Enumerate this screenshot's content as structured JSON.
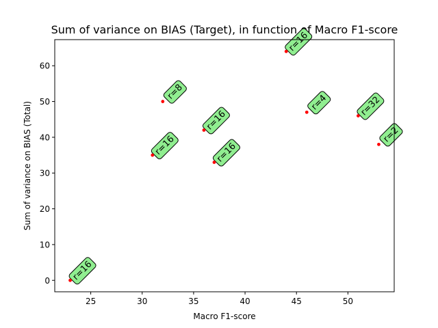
{
  "chart_data": {
    "type": "scatter",
    "title": "Sum of variance on BIAS (Target), in function of Macro F1-score",
    "xlabel": "Macro F1-score",
    "ylabel": "Sum of variance on BIAS (Total)",
    "xlim": [
      21.5,
      54.5
    ],
    "ylim": [
      -3.2,
      67.3
    ],
    "xticks": [
      25,
      30,
      35,
      40,
      45,
      50
    ],
    "yticks": [
      0,
      10,
      20,
      30,
      40,
      50,
      60
    ],
    "grid": false,
    "point_color": "#ff0000",
    "annotation_face": "#90ee90",
    "points": [
      {
        "x": 23,
        "y": 0,
        "label": "r=16"
      },
      {
        "x": 31,
        "y": 35,
        "label": "r=16"
      },
      {
        "x": 32,
        "y": 50,
        "label": "r=8"
      },
      {
        "x": 36,
        "y": 42,
        "label": "r=16"
      },
      {
        "x": 37,
        "y": 33,
        "label": "r=16"
      },
      {
        "x": 44,
        "y": 64,
        "label": "r=16"
      },
      {
        "x": 46,
        "y": 47,
        "label": "r=4"
      },
      {
        "x": 51,
        "y": 46,
        "label": "r=32"
      },
      {
        "x": 53,
        "y": 38,
        "label": "r=2"
      }
    ]
  }
}
